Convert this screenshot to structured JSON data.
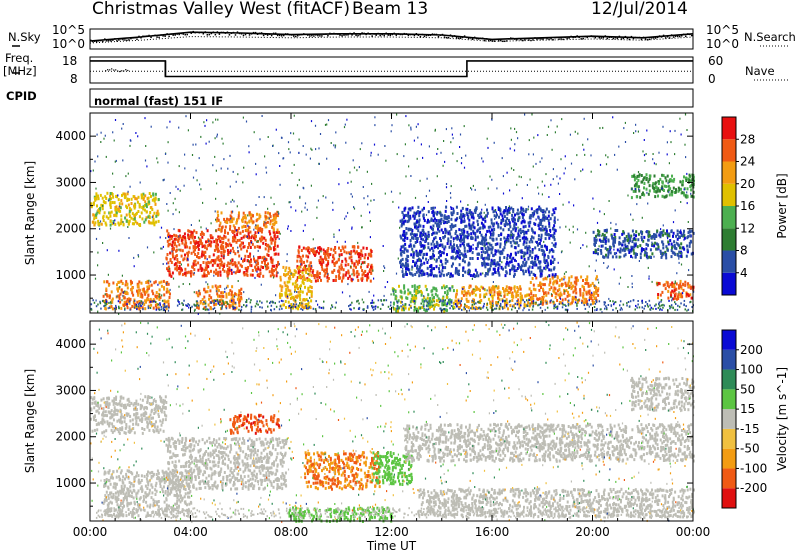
{
  "header": {
    "station": "Christmas Valley West (fitACF)",
    "beam": "Beam 13",
    "date": "12/Jul/2014"
  },
  "side_labels": {
    "nsky": "N.Sky",
    "nsearch": "N.Search",
    "freq": "Freq.",
    "freq_unit": "[MHz]",
    "nave": "Nave",
    "cpid": "CPID",
    "nsky_ticks": [
      "10^5",
      "10^0"
    ],
    "nsearch_ticks": [
      "10^5",
      "10^0"
    ],
    "freq_ticks": [
      "18",
      "8"
    ],
    "nave_ticks": [
      "60",
      "0"
    ]
  },
  "cpid_text": "normal (fast) 151 IF",
  "colors": {
    "power_scale": [
      "#0a0ad4",
      "#2a4ea6",
      "#2e7d32",
      "#4caf50",
      "#e0c000",
      "#f39c12",
      "#f05a14",
      "#e81010"
    ],
    "velocity_scale": [
      "#e01010",
      "#f05a14",
      "#f39c12",
      "#f0c040",
      "#bdbdb5",
      "#5cc542",
      "#2e8b57",
      "#2a4ea6",
      "#0a0ad4"
    ]
  },
  "chart_data": [
    {
      "type": "line",
      "panel": "N.Sky / N.Search",
      "x": [
        "00:00",
        "02:00",
        "04:00",
        "06:00",
        "08:00",
        "10:00",
        "12:00",
        "14:00",
        "16:00",
        "18:00",
        "20:00",
        "22:00",
        "24:00"
      ],
      "series": [
        {
          "name": "N.Sky",
          "values": [
            2.0,
            3.0,
            4.2,
            4.0,
            3.6,
            3.8,
            3.8,
            3.5,
            2.4,
            2.8,
            3.2,
            2.8,
            3.8
          ]
        },
        {
          "name": "N.Search",
          "values": [
            1.5,
            2.2,
            3.1,
            3.0,
            2.8,
            3.0,
            3.0,
            2.8,
            1.9,
            2.2,
            2.5,
            2.2,
            3.0
          ]
        }
      ],
      "ylim": [
        0,
        5
      ],
      "yscale": "log"
    },
    {
      "type": "line",
      "panel": "Freq. / Nave",
      "x": [
        "00:00",
        "02:00",
        "03:00",
        "15:00",
        "24:00"
      ],
      "series": [
        {
          "name": "Freq.",
          "values": [
            16.5,
            16.5,
            10.5,
            16.5,
            16.5
          ]
        },
        {
          "name": "Nave",
          "values": [
            26,
            26,
            26,
            26,
            26
          ]
        }
      ],
      "ylim": [
        8,
        18
      ],
      "xlabel": "",
      "ylabel": "[MHz]"
    },
    {
      "type": "heatmap",
      "panel": "Power",
      "ylabel": "Slant Range [km]",
      "yticks": [
        "1000",
        "2000",
        "3000",
        "4000"
      ],
      "ylim": [
        180,
        4500
      ],
      "xlim": [
        "00:00",
        "24:00"
      ],
      "colorbar_label": "Power [dB]",
      "colorbar_ticks": [
        "4",
        "8",
        "12",
        "16",
        "20",
        "24",
        "28"
      ],
      "colorbar_range": [
        0,
        32
      ],
      "blobs": [
        {
          "t0": 0.0,
          "t1": 2.7,
          "r0": 2100,
          "r1": 2800,
          "db": 18
        },
        {
          "t0": 0.5,
          "t1": 3.2,
          "r0": 300,
          "r1": 900,
          "db": 24
        },
        {
          "t0": 3.0,
          "t1": 7.5,
          "r0": 1000,
          "r1": 2000,
          "db": 27
        },
        {
          "t0": 5.0,
          "t1": 7.5,
          "r0": 2000,
          "r1": 2400,
          "db": 24
        },
        {
          "t0": 4.2,
          "t1": 6.0,
          "r0": 300,
          "r1": 800,
          "db": 24
        },
        {
          "t0": 8.2,
          "t1": 11.2,
          "r0": 900,
          "r1": 1650,
          "db": 27
        },
        {
          "t0": 7.5,
          "t1": 8.8,
          "r0": 300,
          "r1": 1200,
          "db": 20
        },
        {
          "t0": 12.0,
          "t1": 14.5,
          "r0": 250,
          "r1": 800,
          "db": 15
        },
        {
          "t0": 14.5,
          "t1": 17.5,
          "r0": 300,
          "r1": 800,
          "db": 22
        },
        {
          "t0": 17.5,
          "t1": 20.2,
          "r0": 400,
          "r1": 1000,
          "db": 24
        },
        {
          "t0": 20.0,
          "t1": 24.0,
          "r0": 1400,
          "r1": 2000,
          "db": 6
        },
        {
          "t0": 22.5,
          "t1": 24.0,
          "r0": 500,
          "r1": 900,
          "db": 26
        },
        {
          "t0": 21.5,
          "t1": 24.0,
          "r0": 2700,
          "r1": 3200,
          "db": 12
        },
        {
          "t0": 12.3,
          "t1": 18.5,
          "r0": 1000,
          "r1": 2500,
          "db": 5
        }
      ]
    },
    {
      "type": "heatmap",
      "panel": "Velocity",
      "ylabel": "Slant Range [km]",
      "xlabel": "Time UT",
      "yticks": [
        "1000",
        "2000",
        "3000",
        "4000"
      ],
      "ylim": [
        180,
        4500
      ],
      "xticks": [
        "00:00",
        "04:00",
        "08:00",
        "12:00",
        "16:00",
        "20:00",
        "00:00"
      ],
      "xlim": [
        "00:00",
        "24:00"
      ],
      "colorbar_label": "Velocity [m s^-1]",
      "colorbar_ticks": [
        "200",
        "100",
        "50",
        "15",
        "-15",
        "-50",
        "-100",
        "-200"
      ],
      "colorbar_range": [
        -250,
        250
      ],
      "blobs": [
        {
          "t0": 0.0,
          "t1": 3.0,
          "r0": 2100,
          "r1": 2900,
          "v": 0
        },
        {
          "t0": 0.5,
          "t1": 4.0,
          "r0": 300,
          "r1": 1300,
          "v": 0
        },
        {
          "t0": 3.0,
          "t1": 7.8,
          "r0": 900,
          "r1": 2000,
          "v": 0
        },
        {
          "t0": 5.5,
          "t1": 7.5,
          "r0": 2100,
          "r1": 2500,
          "v": -180
        },
        {
          "t0": 8.5,
          "t1": 11.5,
          "r0": 900,
          "r1": 1700,
          "v": -140
        },
        {
          "t0": 11.2,
          "t1": 12.8,
          "r0": 1000,
          "r1": 1700,
          "v": 60
        },
        {
          "t0": 7.8,
          "t1": 12.0,
          "r0": 200,
          "r1": 500,
          "v": 60
        },
        {
          "t0": 13.0,
          "t1": 20.0,
          "r0": 300,
          "r1": 900,
          "v": 0
        },
        {
          "t0": 20.0,
          "t1": 24.0,
          "r0": 300,
          "r1": 900,
          "v": 0
        },
        {
          "t0": 21.5,
          "t1": 24.0,
          "r0": 2600,
          "r1": 3300,
          "v": 0
        },
        {
          "t0": 12.5,
          "t1": 24.0,
          "r0": 1500,
          "r1": 2300,
          "v": 0
        }
      ]
    }
  ]
}
